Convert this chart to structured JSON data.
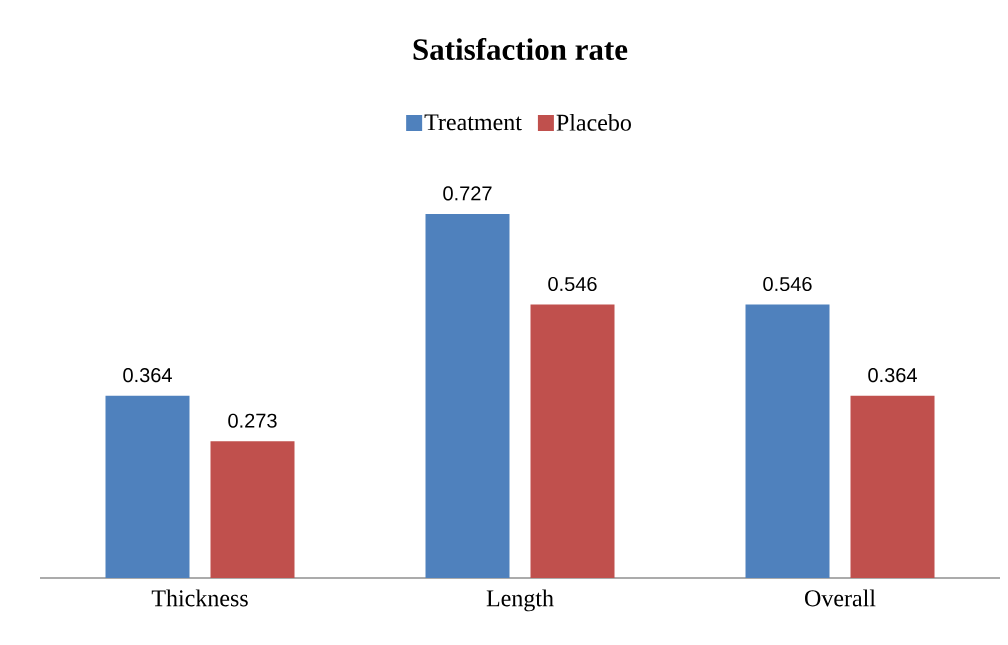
{
  "chart_data": {
    "type": "bar",
    "title": "Satisfaction rate",
    "categories": [
      "Thickness",
      "Length",
      "Overall"
    ],
    "series": [
      {
        "name": "Treatment",
        "color": "#4f81bd",
        "values": [
          0.364,
          0.727,
          0.546
        ]
      },
      {
        "name": "Placebo",
        "color": "#c0504d",
        "values": [
          0.273,
          0.546,
          0.364
        ]
      }
    ],
    "data_labels": true,
    "legend": "top",
    "grid": false
  }
}
